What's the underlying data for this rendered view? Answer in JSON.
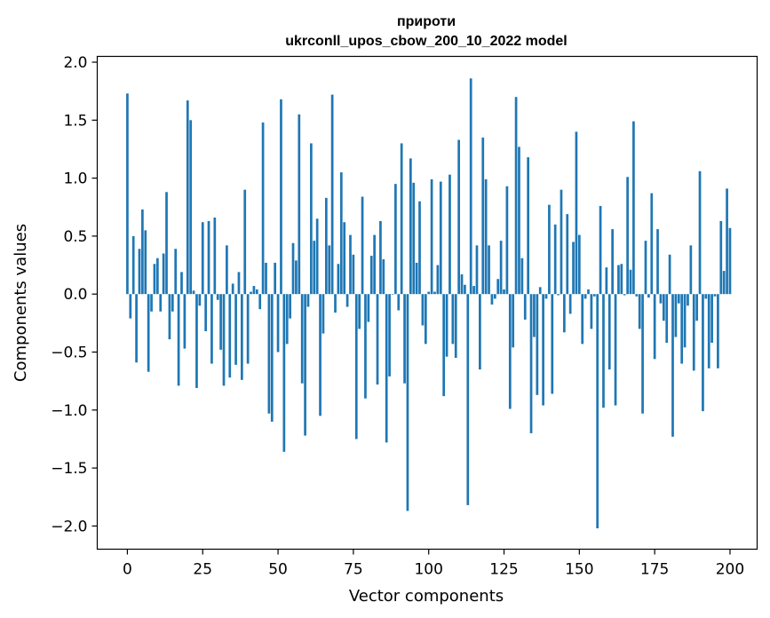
{
  "chart_data": {
    "type": "bar",
    "title": "прироти",
    "subtitle": "ukrconll_upos_cbow_200_10_2022 model",
    "xlabel": "Vector components",
    "ylabel": "Components values",
    "xlim": [
      -10,
      209
    ],
    "ylim": [
      -2.2,
      2.05
    ],
    "xticks": [
      0,
      25,
      50,
      75,
      100,
      125,
      150,
      175,
      200
    ],
    "xtick_labels": [
      "0",
      "25",
      "50",
      "75",
      "100",
      "125",
      "150",
      "175",
      "200"
    ],
    "yticks": [
      2.0,
      1.5,
      1.0,
      0.5,
      0.0,
      -0.5,
      -1.0,
      -1.5,
      -2.0
    ],
    "ytick_labels": [
      "2.0",
      "1.5",
      "1.0",
      "0.5",
      "0.0",
      "−0.5",
      "−1.0",
      "−1.5",
      "−2.0"
    ],
    "grid": false,
    "bar_color": "#1f77b4",
    "values": [
      1.73,
      -0.21,
      0.5,
      -0.59,
      0.39,
      0.73,
      0.55,
      -0.67,
      -0.15,
      0.26,
      0.31,
      -0.15,
      0.35,
      0.88,
      -0.39,
      -0.15,
      0.39,
      -0.79,
      0.19,
      -0.47,
      1.67,
      1.5,
      0.03,
      -0.81,
      -0.1,
      0.62,
      -0.32,
      0.63,
      -0.6,
      0.66,
      -0.05,
      -0.48,
      -0.79,
      0.42,
      -0.72,
      0.09,
      -0.61,
      0.19,
      -0.74,
      0.9,
      -0.6,
      0.02,
      0.07,
      0.04,
      -0.13,
      1.48,
      0.27,
      -1.03,
      -1.1,
      0.27,
      -0.5,
      1.68,
      -1.36,
      -0.43,
      -0.21,
      0.44,
      0.29,
      1.55,
      -0.77,
      -1.22,
      -0.11,
      1.3,
      0.46,
      0.65,
      -1.05,
      -0.34,
      0.83,
      0.42,
      1.72,
      -0.16,
      0.26,
      1.05,
      0.62,
      -0.11,
      0.51,
      0.34,
      -1.25,
      -0.3,
      0.84,
      -0.9,
      -0.24,
      0.33,
      0.51,
      -0.78,
      0.63,
      0.3,
      -1.28,
      -0.71,
      0.0,
      0.95,
      -0.14,
      1.3,
      -0.77,
      -1.87,
      1.17,
      0.96,
      0.27,
      0.8,
      -0.27,
      -0.43,
      0.02,
      0.99,
      0.02,
      0.25,
      0.97,
      -0.88,
      -0.54,
      1.03,
      -0.43,
      -0.55,
      1.33,
      0.17,
      0.08,
      -1.82,
      1.86,
      0.07,
      0.42,
      -0.65,
      1.35,
      0.99,
      0.42,
      -0.09,
      -0.04,
      0.13,
      0.46,
      0.04,
      0.93,
      -0.99,
      -0.46,
      1.7,
      1.27,
      0.31,
      -0.22,
      1.18,
      -1.2,
      -0.37,
      -0.87,
      0.06,
      -0.96,
      -0.04,
      0.77,
      -0.86,
      0.6,
      -0.01,
      0.9,
      -0.33,
      0.69,
      -0.17,
      0.45,
      1.4,
      0.51,
      -0.43,
      -0.04,
      0.04,
      -0.3,
      -0.02,
      -2.02,
      0.76,
      -0.98,
      0.23,
      -0.65,
      0.56,
      -0.96,
      0.25,
      0.26,
      -0.01,
      1.01,
      0.21,
      1.49,
      -0.02,
      -0.3,
      -1.03,
      0.46,
      -0.03,
      0.87,
      -0.56,
      0.56,
      -0.08,
      -0.23,
      -0.42,
      0.34,
      -1.23,
      -0.37,
      -0.08,
      -0.6,
      -0.46,
      -0.1,
      0.42,
      -0.66,
      -0.23,
      1.06,
      -1.01,
      -0.04,
      -0.64,
      -0.42,
      -0.02,
      -0.64,
      0.63,
      0.2,
      0.91,
      0.57
    ]
  }
}
